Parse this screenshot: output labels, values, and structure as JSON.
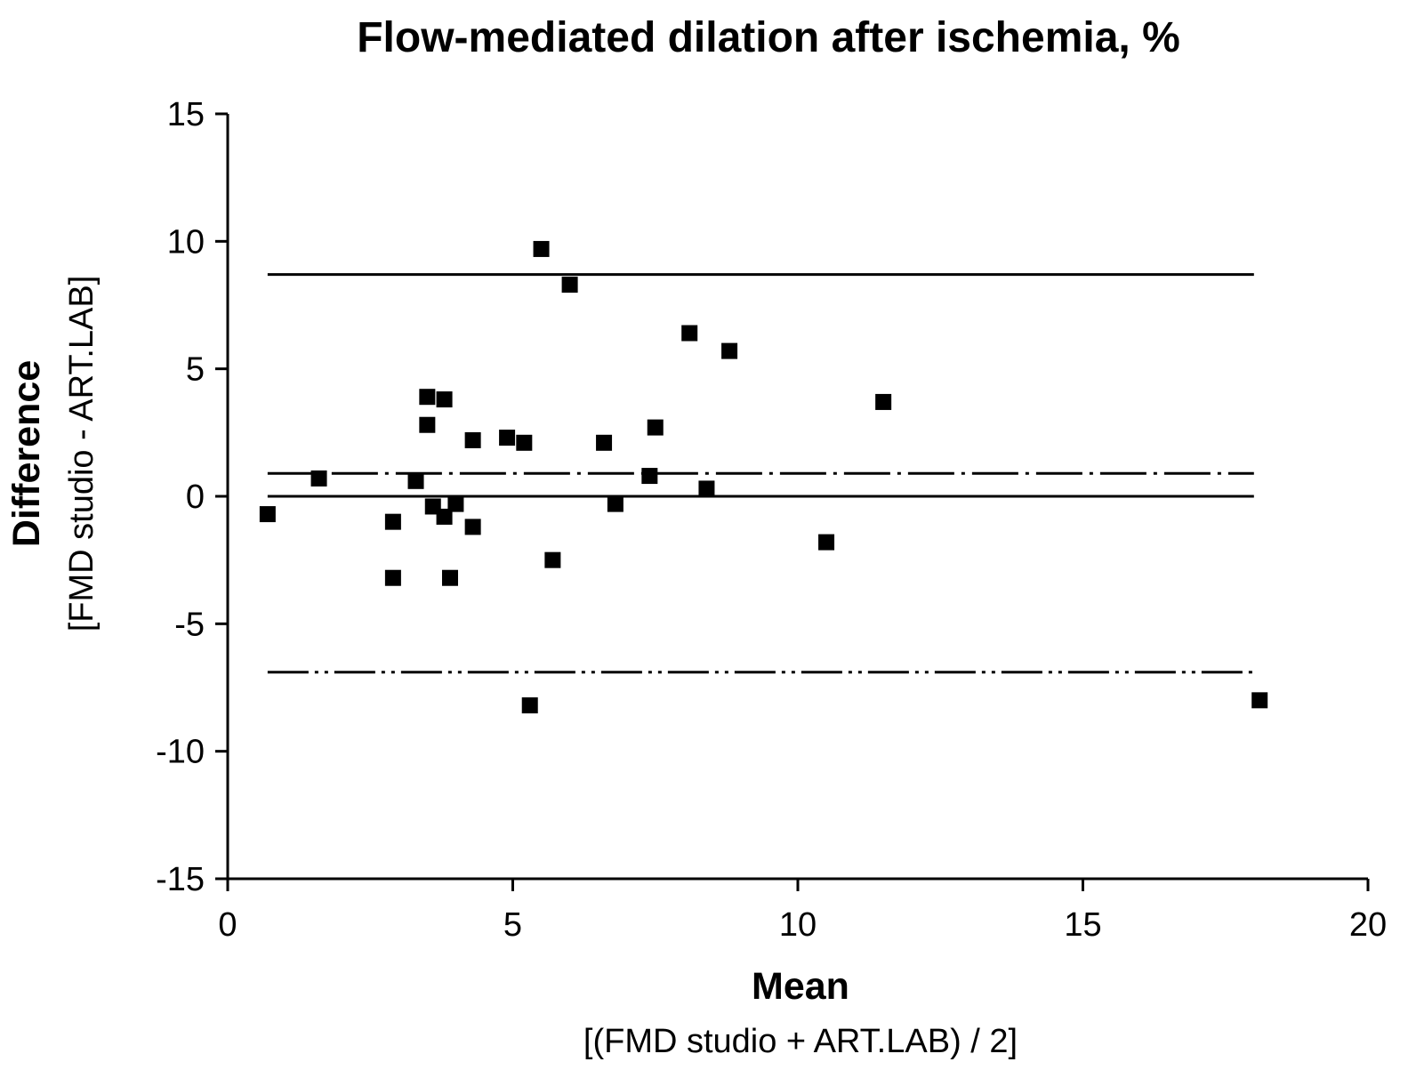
{
  "chart_data": {
    "type": "scatter",
    "title": "Flow-mediated dilation after ischemia, %",
    "xlabel": "Mean",
    "xlabel_sub": "[(FMD studio + ART.LAB) / 2]",
    "ylabel": "Difference",
    "ylabel_sub": "[FMD studio - ART.LAB]",
    "xlim": [
      0,
      20
    ],
    "ylim": [
      -15,
      15
    ],
    "x_ticks": [
      0,
      5,
      10,
      15,
      20
    ],
    "y_ticks": [
      15,
      10,
      5,
      0,
      -5,
      -10,
      -15
    ],
    "x_tick_labels": [
      "0",
      "5",
      "10",
      "15",
      "20"
    ],
    "y_tick_labels": [
      "15",
      "10",
      "5",
      "0",
      "-5",
      "-10",
      "-15"
    ],
    "grid": false,
    "legend": "none",
    "marker_color": "#000000",
    "reference_lines": [
      {
        "y": 8.7,
        "style": "solid",
        "x_range": [
          0.7,
          18.0
        ]
      },
      {
        "y": 0.9,
        "style": "dash-dot",
        "x_range": [
          0.7,
          18.0
        ]
      },
      {
        "y": 0.0,
        "style": "solid",
        "x_range": [
          0.7,
          18.0
        ]
      },
      {
        "y": -6.9,
        "style": "dash-dot-dot",
        "x_range": [
          0.7,
          18.0
        ]
      }
    ],
    "points": [
      {
        "x": 0.7,
        "y": -0.7
      },
      {
        "x": 1.6,
        "y": 0.7
      },
      {
        "x": 2.9,
        "y": -1.0
      },
      {
        "x": 2.9,
        "y": -3.2
      },
      {
        "x": 3.3,
        "y": 0.6
      },
      {
        "x": 3.5,
        "y": 3.9
      },
      {
        "x": 3.5,
        "y": 2.8
      },
      {
        "x": 3.6,
        "y": -0.4
      },
      {
        "x": 3.8,
        "y": 3.8
      },
      {
        "x": 3.8,
        "y": -0.8
      },
      {
        "x": 3.9,
        "y": -3.2
      },
      {
        "x": 4.0,
        "y": -0.3
      },
      {
        "x": 4.3,
        "y": 2.2
      },
      {
        "x": 4.3,
        "y": -1.2
      },
      {
        "x": 4.9,
        "y": 2.3
      },
      {
        "x": 5.2,
        "y": 2.1
      },
      {
        "x": 5.3,
        "y": -8.2
      },
      {
        "x": 5.5,
        "y": 9.7
      },
      {
        "x": 5.7,
        "y": -2.5
      },
      {
        "x": 6.0,
        "y": 8.3
      },
      {
        "x": 6.6,
        "y": 2.1
      },
      {
        "x": 6.8,
        "y": -0.3
      },
      {
        "x": 7.4,
        "y": 0.8
      },
      {
        "x": 7.5,
        "y": 2.7
      },
      {
        "x": 8.1,
        "y": 6.4
      },
      {
        "x": 8.4,
        "y": 0.3
      },
      {
        "x": 8.8,
        "y": 5.7
      },
      {
        "x": 10.5,
        "y": -1.8
      },
      {
        "x": 11.5,
        "y": 3.7
      },
      {
        "x": 18.1,
        "y": -8.0
      }
    ]
  }
}
